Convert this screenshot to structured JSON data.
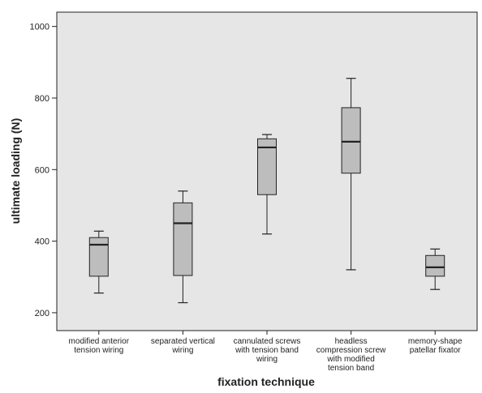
{
  "colors": {
    "plot_background": "#e6e6e6",
    "box_fill": "#bdbdbd",
    "line": "#222222"
  },
  "chart_data": {
    "type": "box",
    "xlabel": "fixation technique",
    "ylabel": "ultimate loading (N)",
    "ylim": [
      150,
      1040
    ],
    "yticks": [
      200,
      400,
      600,
      800,
      1000
    ],
    "grid": false,
    "categories": [
      [
        "modified anterior",
        "tension wiring"
      ],
      [
        "separated vertical",
        "wiring"
      ],
      [
        "cannulated screws",
        "with tension band",
        "wiring"
      ],
      [
        "headless",
        "compression screw",
        "with modified",
        "tension band"
      ],
      [
        "memory-shape",
        "patellar fixator"
      ]
    ],
    "boxes": [
      {
        "min": 255,
        "q1": 302,
        "median": 390,
        "q3": 410,
        "max": 428
      },
      {
        "min": 228,
        "q1": 304,
        "median": 450,
        "q3": 507,
        "max": 540
      },
      {
        "min": 420,
        "q1": 530,
        "median": 662,
        "q3": 686,
        "max": 698
      },
      {
        "min": 320,
        "q1": 590,
        "median": 678,
        "q3": 773,
        "max": 855
      },
      {
        "min": 265,
        "q1": 302,
        "median": 327,
        "q3": 360,
        "max": 378
      }
    ]
  }
}
